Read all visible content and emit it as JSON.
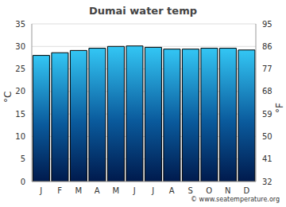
{
  "chart_data": {
    "type": "bar",
    "title": "Dumai water temp",
    "categories": [
      "J",
      "F",
      "M",
      "A",
      "M",
      "J",
      "J",
      "A",
      "S",
      "O",
      "N",
      "D"
    ],
    "values": [
      28.0,
      28.6,
      29.1,
      29.6,
      30.0,
      30.1,
      29.8,
      29.4,
      29.4,
      29.6,
      29.6,
      29.2
    ],
    "color": "#33c6f4",
    "ylabel": "°C",
    "y2label": "°F",
    "ylim": [
      0,
      35
    ],
    "yticks": [
      0,
      5,
      10,
      15,
      20,
      25,
      30,
      35
    ],
    "y2lim": [
      32,
      95
    ],
    "y2ticks": [
      32,
      41,
      50,
      59,
      68,
      77,
      86,
      95
    ],
    "grid": true,
    "annotations": [
      "© www.seatemperature.org"
    ]
  }
}
